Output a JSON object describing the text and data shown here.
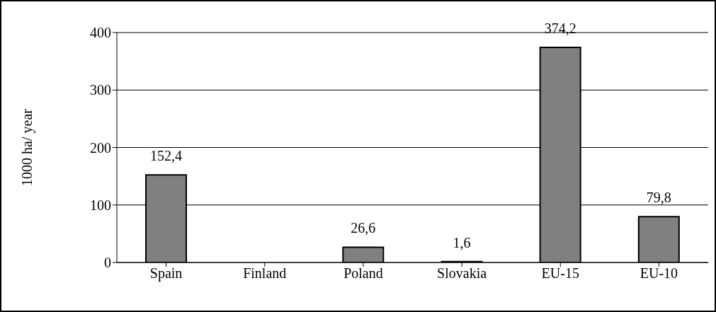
{
  "chart_data": {
    "type": "bar",
    "ylabel": "1000 ha/ year",
    "categories": [
      "Spain",
      "Finland",
      "Poland",
      "Slovakia",
      "EU-15",
      "EU-10"
    ],
    "values": [
      152.4,
      null,
      26.6,
      1.6,
      374.2,
      79.8
    ],
    "value_labels": [
      "152,4",
      null,
      "26,6",
      "1,6",
      "374,2",
      "79,8"
    ],
    "color": "#808080",
    "ylim": [
      0,
      400
    ],
    "yticks": [
      0,
      100,
      200,
      300,
      400
    ],
    "grid": "y"
  }
}
